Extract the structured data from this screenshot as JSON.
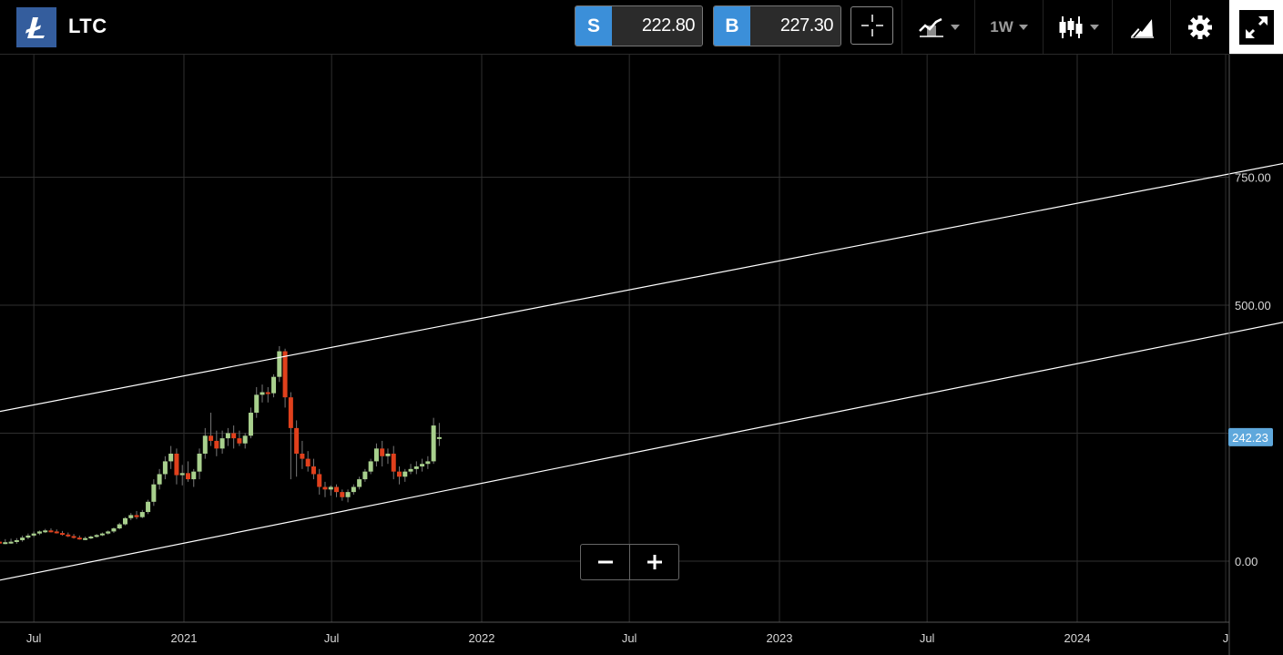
{
  "header": {
    "symbol": "LTC",
    "logo_icon": "litecoin-icon",
    "sell": {
      "tag": "S",
      "price": "222.80"
    },
    "buy": {
      "tag": "B",
      "price": "227.30"
    },
    "interval": "1W",
    "tools": [
      "crosshair-icon",
      "compare-icon",
      "candlestick-icon",
      "drawing-icon",
      "gear-icon",
      "expand-icon"
    ],
    "colors": {
      "accent": "#3b8fd9",
      "logo_bg": "#345d9d"
    }
  },
  "chart_data": {
    "type": "candlestick",
    "x_ticks": [
      "Jul",
      "2021",
      "Jul",
      "2022",
      "Jul",
      "2023",
      "Jul",
      "2024",
      "J"
    ],
    "y_ticks": [
      0,
      500,
      750
    ],
    "y_tick_labels": [
      "0.00",
      "500.00",
      "750.00"
    ],
    "last_price_label": "242.23",
    "last_price": 242.23,
    "ylim": [
      -120,
      1070
    ],
    "grid": true,
    "colors": {
      "up": "#a8d08d",
      "down": "#e0401c",
      "trendline": "#ffffff",
      "grid": "#2f2f2f",
      "price_tag": "#5fa8dc"
    },
    "trendlines": [
      {
        "start": [
          "2020-04-10",
          280
        ],
        "end": [
          "2024-09-20",
          780
        ]
      },
      {
        "start": [
          "2020-04-10",
          -50
        ],
        "end": [
          "2024-09-20",
          470
        ]
      }
    ],
    "candles": [
      [
        "2020-04-15",
        40,
        44,
        34,
        38
      ],
      [
        "2020-04-22",
        38,
        44,
        34,
        38
      ],
      [
        "2020-04-29",
        38,
        46,
        34,
        39
      ],
      [
        "2020-05-06",
        39,
        48,
        35,
        38
      ],
      [
        "2020-05-13",
        38,
        45,
        34,
        38
      ],
      [
        "2020-05-20",
        38,
        44,
        33,
        37
      ],
      [
        "2020-05-27",
        37,
        43,
        33,
        37
      ],
      [
        "2020-06-03",
        37,
        44,
        34,
        38
      ],
      [
        "2020-06-10",
        38,
        45,
        34,
        41
      ],
      [
        "2020-06-17",
        41,
        50,
        38,
        46
      ],
      [
        "2020-06-24",
        46,
        54,
        43,
        50
      ],
      [
        "2020-07-01",
        50,
        58,
        47,
        54
      ],
      [
        "2020-07-08",
        54,
        60,
        51,
        58
      ],
      [
        "2020-07-15",
        58,
        63,
        55,
        60
      ],
      [
        "2020-07-22",
        60,
        64,
        56,
        58
      ],
      [
        "2020-07-29",
        58,
        62,
        54,
        55
      ],
      [
        "2020-08-05",
        55,
        59,
        50,
        52
      ],
      [
        "2020-08-12",
        52,
        56,
        47,
        49
      ],
      [
        "2020-08-19",
        49,
        53,
        44,
        46
      ],
      [
        "2020-08-26",
        46,
        50,
        42,
        44
      ],
      [
        "2020-09-02",
        44,
        48,
        41,
        45
      ],
      [
        "2020-09-09",
        45,
        50,
        43,
        48
      ],
      [
        "2020-09-16",
        48,
        53,
        46,
        51
      ],
      [
        "2020-09-23",
        51,
        56,
        49,
        54
      ],
      [
        "2020-09-30",
        54,
        60,
        52,
        58
      ],
      [
        "2020-10-07",
        58,
        66,
        55,
        64
      ],
      [
        "2020-10-14",
        64,
        75,
        62,
        72
      ],
      [
        "2020-10-21",
        72,
        86,
        70,
        84
      ],
      [
        "2020-10-28",
        84,
        94,
        80,
        90
      ],
      [
        "2020-11-04",
        90,
        98,
        82,
        86
      ],
      [
        "2020-11-11",
        86,
        100,
        84,
        96
      ],
      [
        "2020-11-18",
        96,
        120,
        92,
        116
      ],
      [
        "2020-11-25",
        116,
        160,
        108,
        150
      ],
      [
        "2020-12-02",
        150,
        180,
        140,
        170
      ],
      [
        "2020-12-09",
        170,
        205,
        160,
        195
      ],
      [
        "2020-12-16",
        195,
        225,
        180,
        210
      ],
      [
        "2020-12-23",
        210,
        220,
        150,
        168
      ],
      [
        "2020-12-30",
        168,
        188,
        148,
        172
      ],
      [
        "2021-01-06",
        172,
        195,
        155,
        160
      ],
      [
        "2021-01-13",
        160,
        180,
        145,
        175
      ],
      [
        "2021-01-20",
        175,
        220,
        160,
        210
      ],
      [
        "2021-01-27",
        210,
        260,
        200,
        245
      ],
      [
        "2021-02-03",
        245,
        290,
        225,
        235
      ],
      [
        "2021-02-10",
        235,
        255,
        205,
        220
      ],
      [
        "2021-02-17",
        220,
        255,
        210,
        240
      ],
      [
        "2021-02-24",
        240,
        260,
        225,
        250
      ],
      [
        "2021-03-03",
        250,
        265,
        220,
        240
      ],
      [
        "2021-03-10",
        240,
        255,
        225,
        230
      ],
      [
        "2021-03-17",
        230,
        250,
        220,
        245
      ],
      [
        "2021-03-24",
        245,
        300,
        240,
        290
      ],
      [
        "2021-03-31",
        290,
        340,
        280,
        325
      ],
      [
        "2021-04-07",
        325,
        345,
        310,
        330
      ],
      [
        "2021-04-14",
        330,
        340,
        310,
        328
      ],
      [
        "2021-04-21",
        328,
        365,
        320,
        360
      ],
      [
        "2021-04-28",
        360,
        420,
        350,
        410
      ],
      [
        "2021-05-05",
        410,
        415,
        300,
        320
      ],
      [
        "2021-05-12",
        320,
        330,
        160,
        260
      ],
      [
        "2021-05-19",
        260,
        275,
        165,
        210
      ],
      [
        "2021-05-26",
        210,
        235,
        180,
        200
      ],
      [
        "2021-06-02",
        200,
        215,
        175,
        185
      ],
      [
        "2021-06-09",
        185,
        200,
        160,
        170
      ],
      [
        "2021-06-16",
        170,
        180,
        130,
        145
      ],
      [
        "2021-06-23",
        145,
        155,
        125,
        140
      ],
      [
        "2021-06-30",
        140,
        148,
        128,
        145
      ],
      [
        "2021-07-07",
        145,
        150,
        125,
        135
      ],
      [
        "2021-07-14",
        135,
        140,
        118,
        125
      ],
      [
        "2021-07-21",
        125,
        140,
        115,
        135
      ],
      [
        "2021-07-28",
        135,
        150,
        130,
        145
      ],
      [
        "2021-08-04",
        145,
        165,
        140,
        160
      ],
      [
        "2021-08-11",
        160,
        180,
        155,
        175
      ],
      [
        "2021-08-18",
        175,
        200,
        170,
        195
      ],
      [
        "2021-08-25",
        195,
        230,
        185,
        220
      ],
      [
        "2021-09-01",
        220,
        235,
        185,
        205
      ],
      [
        "2021-09-08",
        205,
        220,
        190,
        210
      ],
      [
        "2021-09-15",
        210,
        225,
        160,
        175
      ],
      [
        "2021-09-22",
        175,
        185,
        150,
        165
      ],
      [
        "2021-09-29",
        165,
        180,
        155,
        175
      ],
      [
        "2021-10-06",
        175,
        190,
        170,
        180
      ],
      [
        "2021-10-13",
        180,
        195,
        170,
        185
      ],
      [
        "2021-10-20",
        185,
        200,
        175,
        190
      ],
      [
        "2021-10-27",
        190,
        205,
        180,
        195
      ],
      [
        "2021-11-03",
        195,
        280,
        190,
        265
      ],
      [
        "2021-11-10",
        240,
        270,
        225,
        242.23
      ]
    ]
  },
  "zoom": {
    "minus": "−",
    "plus": "+"
  }
}
